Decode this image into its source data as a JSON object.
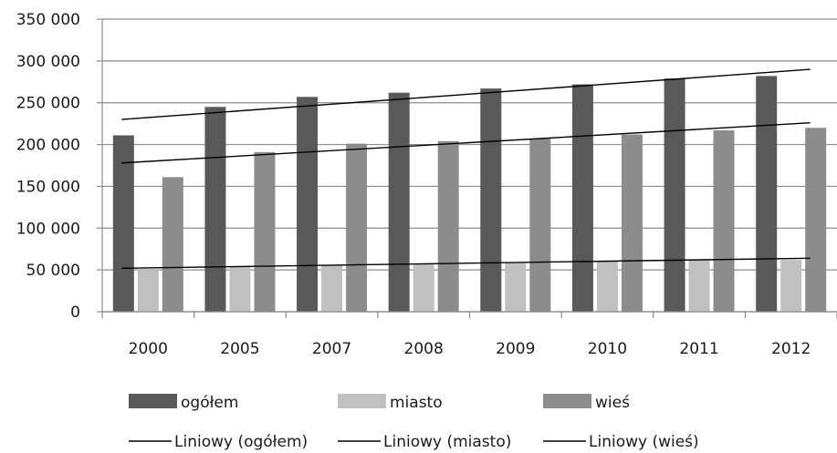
{
  "chart_data": {
    "type": "bar",
    "categories": [
      "2000",
      "2005",
      "2007",
      "2008",
      "2009",
      "2010",
      "2011",
      "2012"
    ],
    "series": [
      {
        "name": "ogółem",
        "color": "#595959",
        "values": [
          211000,
          245000,
          257000,
          262000,
          267000,
          272000,
          279000,
          282000
        ]
      },
      {
        "name": "miasto",
        "color": "#c0c0c0",
        "values": [
          50000,
          54000,
          56000,
          57000,
          58000,
          60000,
          62000,
          62000
        ]
      },
      {
        "name": "wieś",
        "color": "#8c8c8c",
        "values": [
          161000,
          191000,
          201000,
          204000,
          207000,
          212000,
          217000,
          220000
        ]
      }
    ],
    "trendlines": [
      {
        "name": "Liniowy (ogółem)",
        "color": "#000000",
        "start": 230000,
        "end": 290000
      },
      {
        "name": "Liniowy (miasto)",
        "color": "#000000",
        "start": 52000,
        "end": 64000
      },
      {
        "name": "Liniowy (wieś)",
        "color": "#000000",
        "start": 178000,
        "end": 226000
      }
    ],
    "ylim": [
      0,
      350000
    ],
    "yticks": [
      0,
      50000,
      100000,
      150000,
      200000,
      250000,
      300000,
      350000
    ],
    "ytick_labels": [
      "0",
      "50 000",
      "100 000",
      "150 000",
      "200 000",
      "250 000",
      "300 000",
      "350 000"
    ],
    "grid": true,
    "legend_position": "bottom",
    "title": "",
    "xlabel": "",
    "ylabel": ""
  }
}
